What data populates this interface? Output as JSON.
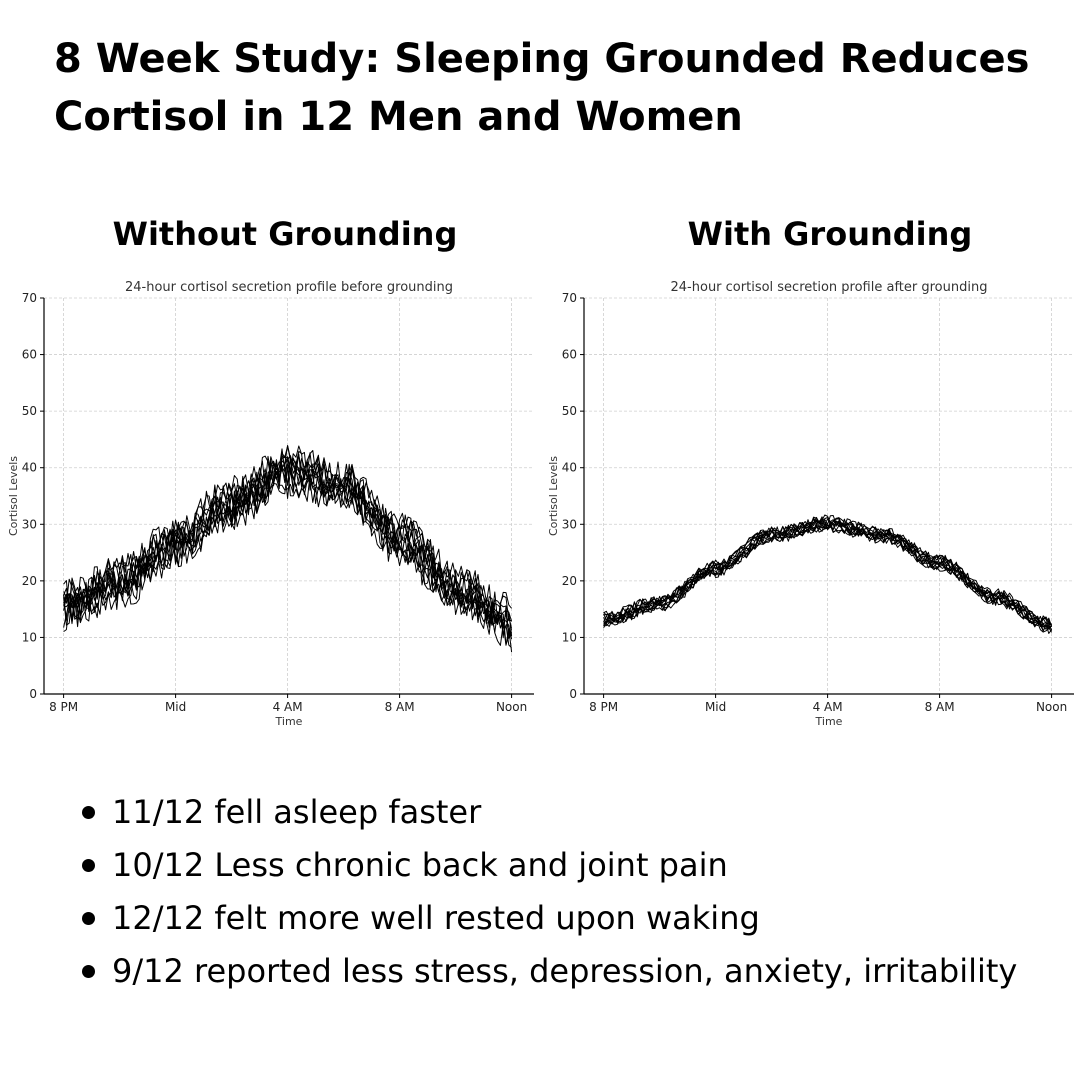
{
  "headline": {
    "line1": "8 Week Study: Sleeping Grounded Reduces",
    "line2": "Cortisol in 12 Men and Women"
  },
  "panels": {
    "left_heading": "Without Grounding",
    "right_heading": "With Grounding"
  },
  "chart_data": [
    {
      "type": "line",
      "title": "24-hour cortisol secretion profile before grounding",
      "xlabel": "Time",
      "ylabel": "Cortisol Levels",
      "x_tick_labels": [
        "8 PM",
        "Mid",
        "4 AM",
        "8 AM",
        "Noon"
      ],
      "x_hours_from_8pm": [
        0,
        4,
        8,
        12,
        16
      ],
      "ylim": [
        0,
        70
      ],
      "y_ticks": [
        0,
        10,
        20,
        30,
        40,
        50,
        60,
        70
      ],
      "grid": true,
      "line_color": "#000000",
      "series_count": 12,
      "profile": {
        "x_hours_from_8pm": [
          0,
          2,
          4,
          6,
          8,
          10,
          12,
          14,
          16
        ],
        "mean": [
          16,
          20,
          27,
          34,
          40,
          37,
          28,
          19,
          13
        ]
      },
      "spread": 6
    },
    {
      "type": "line",
      "title": "24-hour cortisol secretion profile after grounding",
      "xlabel": "Time",
      "ylabel": "Cortisol Levels",
      "x_tick_labels": [
        "8 PM",
        "Mid",
        "4 AM",
        "8 AM",
        "Noon"
      ],
      "x_hours_from_8pm": [
        0,
        4,
        8,
        12,
        16
      ],
      "ylim": [
        0,
        70
      ],
      "y_ticks": [
        0,
        10,
        20,
        30,
        40,
        50,
        60,
        70
      ],
      "grid": true,
      "line_color": "#000000",
      "series_count": 12,
      "profile": {
        "x_hours_from_8pm": [
          0,
          2,
          4,
          6,
          8,
          10,
          12,
          14,
          16
        ],
        "mean": [
          13,
          16,
          22,
          28,
          30,
          28,
          23,
          17,
          12
        ]
      },
      "spread": 1.8
    }
  ],
  "findings": [
    "11/12 fell asleep faster",
    "10/12 Less chronic back and joint pain",
    "12/12 felt more well rested upon waking",
    "9/12 reported less stress, depression, anxiety, irritability"
  ]
}
